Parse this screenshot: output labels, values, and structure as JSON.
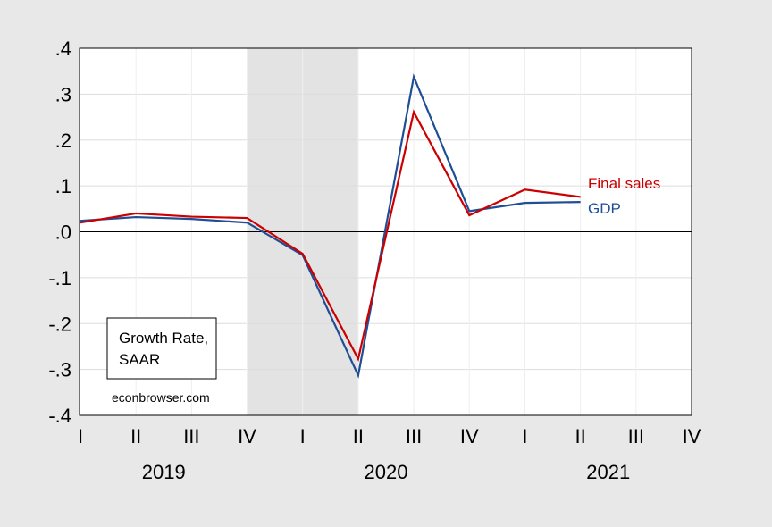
{
  "chart_data": {
    "type": "line",
    "y_tick_labels": [
      ".4",
      ".3",
      ".2",
      ".1",
      ".0",
      "-.1",
      "-.2",
      "-.3",
      "-.4"
    ],
    "y_ticks": [
      0.4,
      0.3,
      0.2,
      0.1,
      0.0,
      -0.1,
      -0.2,
      -0.3,
      -0.4
    ],
    "ylim": [
      -0.4,
      0.4
    ],
    "x_quarter_labels": [
      "I",
      "II",
      "III",
      "IV",
      "I",
      "II",
      "III",
      "IV",
      "I",
      "II",
      "III",
      "IV"
    ],
    "x_years": [
      "2019",
      "2020",
      "2021"
    ],
    "shaded_region": {
      "from_quarter": "2019Q4",
      "to_quarter": "2020Q2",
      "color": "#e3e3e3"
    },
    "series": [
      {
        "name": "GDP",
        "color": "#1f4e96",
        "x": [
          "2019Q1",
          "2019Q2",
          "2019Q3",
          "2019Q4",
          "2020Q1",
          "2020Q2",
          "2020Q3",
          "2020Q4",
          "2021Q1",
          "2021Q2"
        ],
        "values": [
          0.024,
          0.032,
          0.028,
          0.02,
          -0.051,
          -0.313,
          0.338,
          0.045,
          0.063,
          0.065
        ]
      },
      {
        "name": "Final sales",
        "color": "#cc0000",
        "x": [
          "2019Q1",
          "2019Q2",
          "2019Q3",
          "2019Q4",
          "2020Q1",
          "2020Q2",
          "2020Q3",
          "2020Q4",
          "2021Q1",
          "2021Q2"
        ],
        "values": [
          0.02,
          0.04,
          0.033,
          0.03,
          -0.048,
          -0.277,
          0.261,
          0.036,
          0.092,
          0.076
        ]
      }
    ],
    "note": {
      "line1": "Growth Rate,",
      "line2": "SAAR"
    },
    "credit": "econbrowser.com",
    "zero_line": true,
    "grid": true
  }
}
